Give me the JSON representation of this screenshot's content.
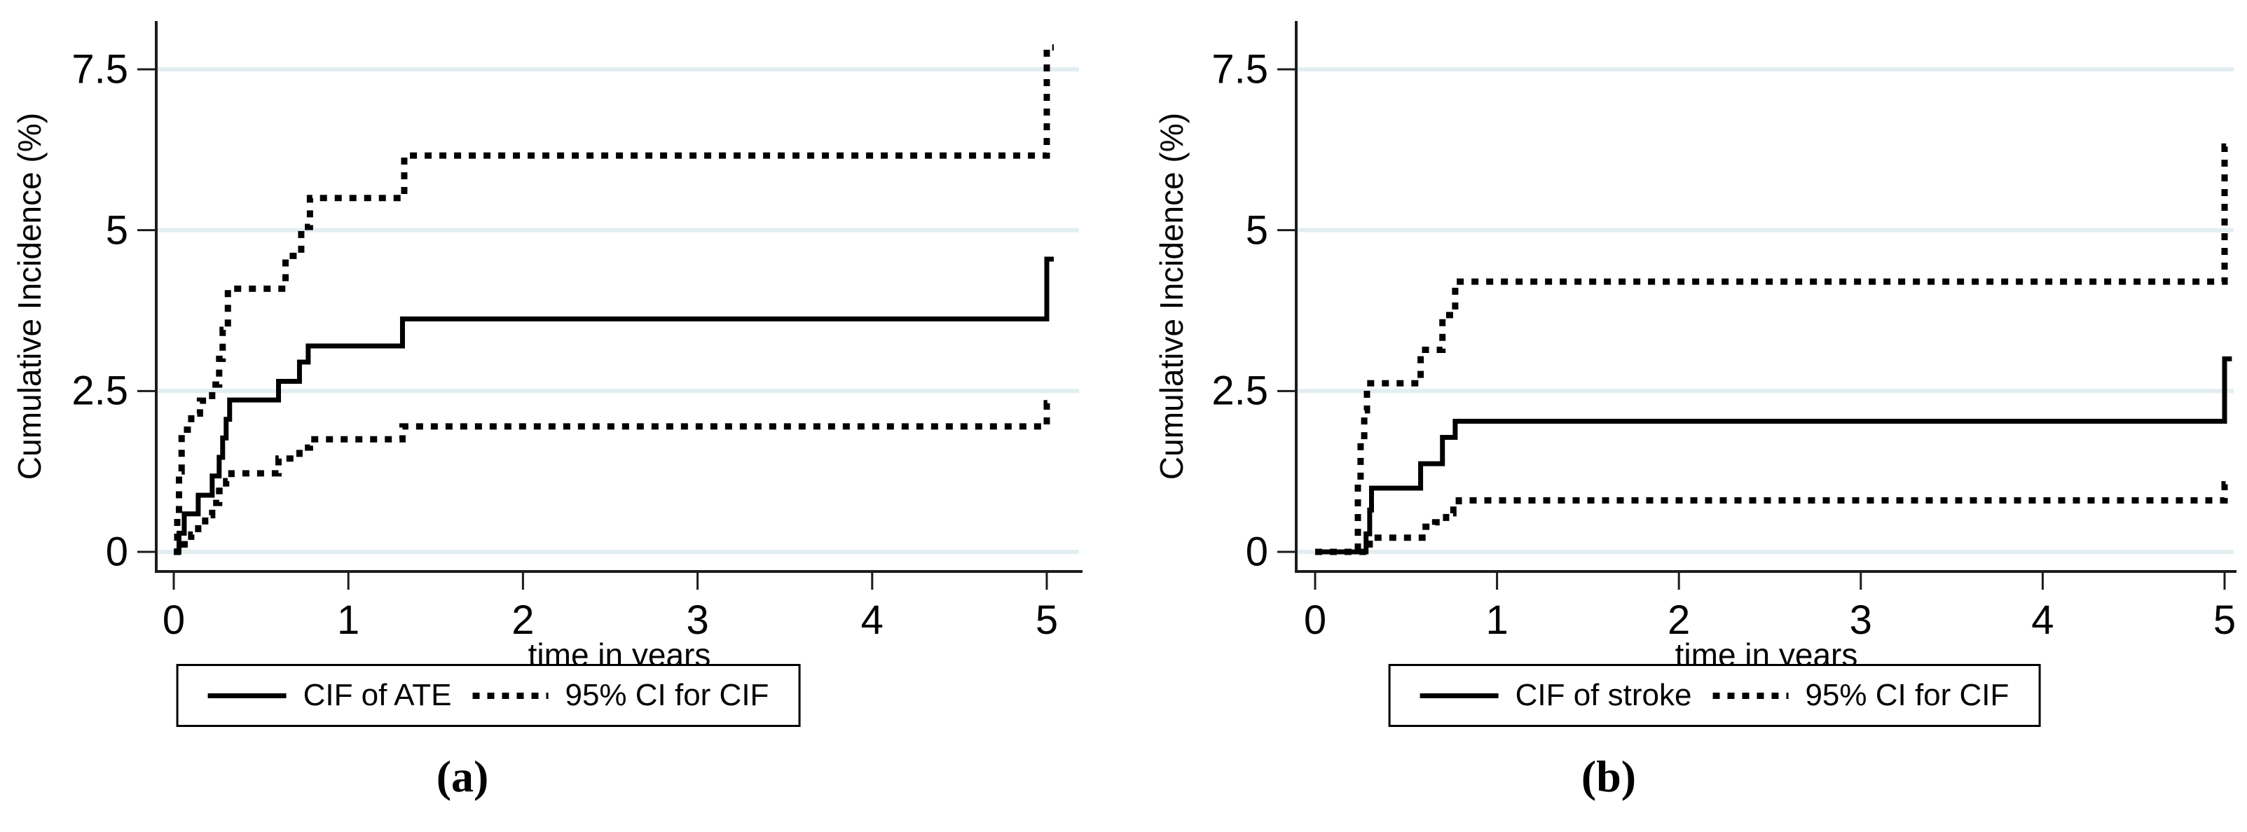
{
  "figure": {
    "background_color": "#ffffff",
    "colors": {
      "curve": "#000000",
      "grid": "#e2eef1",
      "axis": "#1c1c1c",
      "text": "#000000",
      "legend_border": "#000000"
    }
  },
  "chart_data": [
    {
      "type": "line",
      "subtype": "step",
      "panel_label": "(a)",
      "title": "",
      "xlabel": "time in years",
      "ylabel": "Cumulative Incidence (%)",
      "xlim": [
        -0.1,
        5.2
      ],
      "ylim": [
        -0.3,
        8.3
      ],
      "x_tick_values": [
        0,
        1,
        2,
        3,
        4,
        5
      ],
      "x_tick_labels": [
        "0",
        "1",
        "2",
        "3",
        "4",
        "5"
      ],
      "y_tick_values": [
        0,
        2.5,
        5,
        7.5
      ],
      "y_tick_labels": [
        "0",
        "2.5",
        "5",
        "7.5"
      ],
      "grid": "horizontal",
      "legend_position": "bottom",
      "legend": [
        {
          "label": "CIF of ATE",
          "style": "solid"
        },
        {
          "label": "95% CI for CIF",
          "style": "dotted"
        }
      ],
      "series": [
        {
          "name": "CIF of ATE",
          "style": "solid",
          "points": [
            [
              0,
              0
            ],
            [
              0.03,
              0.29
            ],
            [
              0.06,
              0.59
            ],
            [
              0.14,
              0.88
            ],
            [
              0.22,
              1.18
            ],
            [
              0.26,
              1.47
            ],
            [
              0.28,
              1.77
            ],
            [
              0.3,
              2.06
            ],
            [
              0.32,
              2.36
            ],
            [
              0.6,
              2.65
            ],
            [
              0.72,
              2.95
            ],
            [
              0.77,
              3.2
            ],
            [
              1.31,
              3.62
            ],
            [
              5.0,
              4.55
            ],
            [
              5.04,
              4.55
            ]
          ]
        },
        {
          "name": "95% CI for CIF (upper)",
          "style": "dotted",
          "points": [
            [
              0,
              0
            ],
            [
              0.02,
              0.6
            ],
            [
              0.03,
              1.25
            ],
            [
              0.045,
              1.9
            ],
            [
              0.1,
              2.15
            ],
            [
              0.15,
              2.35
            ],
            [
              0.22,
              2.6
            ],
            [
              0.26,
              3.0
            ],
            [
              0.28,
              3.45
            ],
            [
              0.31,
              4.09
            ],
            [
              0.64,
              4.6
            ],
            [
              0.73,
              5.05
            ],
            [
              0.78,
              5.5
            ],
            [
              1.32,
              6.16
            ],
            [
              5.0,
              7.84
            ],
            [
              5.04,
              7.84
            ]
          ]
        },
        {
          "name": "95% CI for CIF (lower)",
          "style": "dotted",
          "points": [
            [
              0,
              0
            ],
            [
              0.06,
              0.12
            ],
            [
              0.1,
              0.27
            ],
            [
              0.14,
              0.42
            ],
            [
              0.18,
              0.57
            ],
            [
              0.22,
              0.76
            ],
            [
              0.26,
              0.95
            ],
            [
              0.3,
              1.1
            ],
            [
              0.33,
              1.22
            ],
            [
              0.6,
              1.45
            ],
            [
              0.72,
              1.62
            ],
            [
              0.78,
              1.75
            ],
            [
              1.31,
              1.95
            ],
            [
              5.0,
              2.31
            ],
            [
              5.04,
              2.31
            ]
          ]
        }
      ]
    },
    {
      "type": "line",
      "subtype": "step",
      "panel_label": "(b)",
      "title": "",
      "xlabel": "time in years",
      "ylabel": "Cumulative Incidence (%)",
      "xlim": [
        -0.1,
        5.2
      ],
      "ylim": [
        -0.3,
        8.3
      ],
      "x_tick_values": [
        0,
        1,
        2,
        3,
        4,
        5
      ],
      "x_tick_labels": [
        "0",
        "1",
        "2",
        "3",
        "4",
        "5"
      ],
      "y_tick_values": [
        0,
        2.5,
        5,
        7.5
      ],
      "y_tick_labels": [
        "0",
        "2.5",
        "5",
        "7.5"
      ],
      "grid": "horizontal",
      "legend_position": "bottom",
      "legend": [
        {
          "label": "CIF of stroke",
          "style": "solid"
        },
        {
          "label": "95% CI for CIF",
          "style": "dotted"
        }
      ],
      "series": [
        {
          "name": "CIF of stroke",
          "style": "solid",
          "points": [
            [
              0,
              0
            ],
            [
              0.28,
              0.28
            ],
            [
              0.3,
              0.65
            ],
            [
              0.31,
              0.99
            ],
            [
              0.58,
              1.37
            ],
            [
              0.7,
              1.78
            ],
            [
              0.77,
              2.03
            ],
            [
              5.0,
              3.0
            ],
            [
              5.04,
              3.0
            ]
          ]
        },
        {
          "name": "95% CI for CIF (upper)",
          "style": "dotted",
          "points": [
            [
              0,
              0
            ],
            [
              0.235,
              1.1
            ],
            [
              0.25,
              1.7
            ],
            [
              0.27,
              2.2
            ],
            [
              0.285,
              2.62
            ],
            [
              0.58,
              3.14
            ],
            [
              0.7,
              3.68
            ],
            [
              0.77,
              4.2
            ],
            [
              5.0,
              6.3
            ],
            [
              5.04,
              6.3
            ]
          ]
        },
        {
          "name": "95% CI for CIF (lower)",
          "style": "dotted",
          "points": [
            [
              0,
              0
            ],
            [
              0.3,
              0.22
            ],
            [
              0.59,
              0.39
            ],
            [
              0.66,
              0.46
            ],
            [
              0.72,
              0.6
            ],
            [
              0.76,
              0.72
            ],
            [
              0.79,
              0.8
            ],
            [
              5.0,
              1.05
            ],
            [
              5.04,
              1.05
            ]
          ]
        }
      ]
    }
  ]
}
